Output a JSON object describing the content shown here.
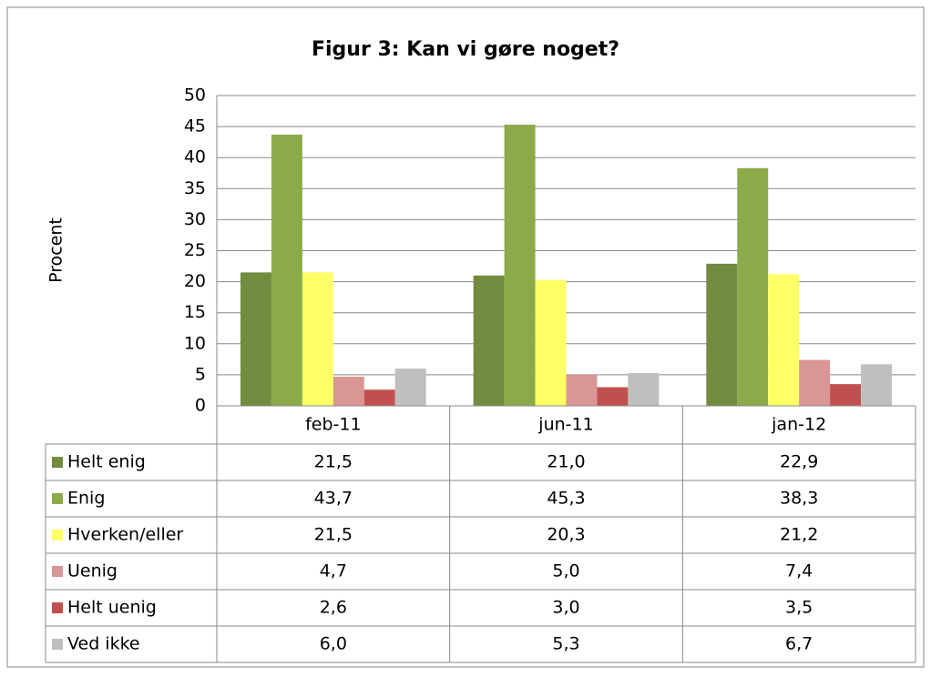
{
  "chart_data": {
    "type": "bar",
    "title": "Figur 3: Kan vi gøre noget?",
    "y_label": "Procent",
    "categories": [
      "feb-11",
      "jun-11",
      "jan-12"
    ],
    "series": [
      {
        "name": "Helt enig",
        "color": "#718b3f",
        "values": [
          21.5,
          21.0,
          22.9
        ],
        "value_labels": [
          "21,5",
          "21,0",
          "22,9"
        ]
      },
      {
        "name": "Enig",
        "color": "#8baa4a",
        "values": [
          43.7,
          45.3,
          38.3
        ],
        "value_labels": [
          "43,7",
          "45,3",
          "38,3"
        ]
      },
      {
        "name": "Hverken/eller",
        "color": "#ffff66",
        "values": [
          21.5,
          20.3,
          21.2
        ],
        "value_labels": [
          "21,5",
          "20,3",
          "21,2"
        ]
      },
      {
        "name": "Uenig",
        "color": "#da9694",
        "values": [
          4.7,
          5.0,
          7.4
        ],
        "value_labels": [
          "4,7",
          "5,0",
          "7,4"
        ]
      },
      {
        "name": "Helt uenig",
        "color": "#c0504d",
        "values": [
          2.6,
          3.0,
          3.5
        ],
        "value_labels": [
          "2,6",
          "3,0",
          "3,5"
        ]
      },
      {
        "name": "Ved ikke",
        "color": "#bfbfbf",
        "values": [
          6.0,
          5.3,
          6.7
        ],
        "value_labels": [
          "6,0",
          "5,3",
          "6,7"
        ]
      }
    ],
    "ylim": [
      0,
      50
    ],
    "yticks": [
      0,
      5,
      10,
      15,
      20,
      25,
      30,
      35,
      40,
      45,
      50
    ],
    "grid": true
  }
}
